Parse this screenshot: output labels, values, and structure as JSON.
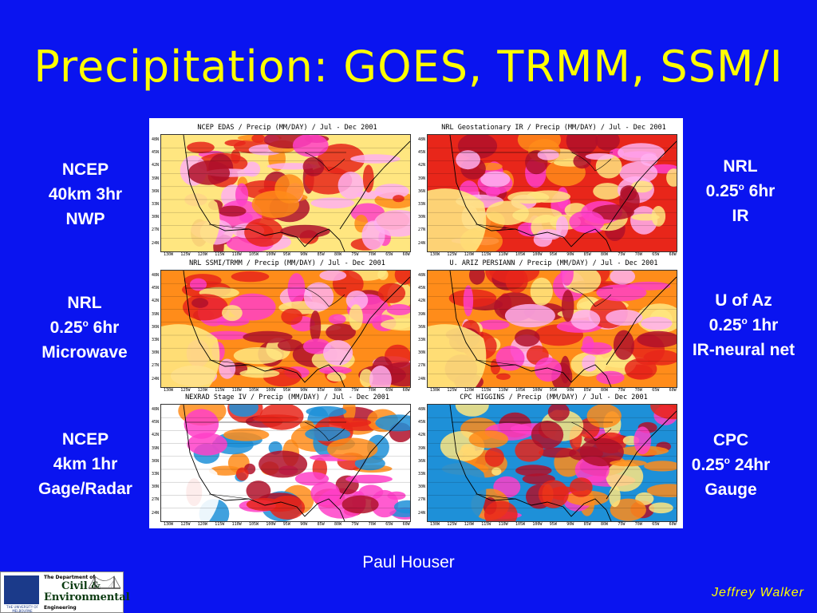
{
  "slide": {
    "title": "Precipitation: GOES, TRMM, SSM/I",
    "credit": "Paul Houser",
    "signature": "Jeffrey Walker"
  },
  "labels": {
    "left": [
      {
        "l1": "NCEP",
        "l2": "40km 3hr",
        "l3": "NWP"
      },
      {
        "l1": "NRL",
        "l2a": "0.25",
        "l2sup": "o",
        "l2b": " 6hr",
        "l3": "Microwave"
      },
      {
        "l1": "NCEP",
        "l2": "4km 1hr",
        "l3": "Gage/Radar"
      }
    ],
    "right": [
      {
        "l1": "NRL",
        "l2a": "0.25",
        "l2sup": "o",
        "l2b": " 6hr",
        "l3": "IR"
      },
      {
        "l1": "U of Az",
        "l2a": "0.25",
        "l2sup": "o",
        "l2b": " 1hr",
        "l3": "IR-neural net"
      },
      {
        "l1": "CPC",
        "l2a": "0.25",
        "l2sup": "o",
        "l2b": " 24hr",
        "l3": "Gauge"
      }
    ]
  },
  "maps": [
    {
      "title": "NCEP EDAS / Precip (MM/DAY) / Jul - Dec 2001"
    },
    {
      "title": "NRL Geostationary IR / Precip (MM/DAY) / Jul - Dec 2001"
    },
    {
      "title": "NRL SSMI/TRMM / Precip (MM/DAY) / Jul - Dec 2001"
    },
    {
      "title": "U. ARIZ PERSIANN / Precip (MM/DAY) / Jul - Dec 2001"
    },
    {
      "title": "NEXRAD Stage IV / Precip (MM/DAY) / Jul - Dec 2001"
    },
    {
      "title": "CPC HIGGINS / Precip (MM/DAY) / Jul - Dec 2001"
    }
  ],
  "lat_ticks": [
    "48N",
    "45N",
    "42N",
    "39N",
    "36N",
    "33N",
    "30N",
    "27N",
    "24N"
  ],
  "lon_ticks": [
    "130W",
    "125W",
    "120W",
    "115W",
    "110W",
    "105W",
    "100W",
    "95W",
    "90W",
    "85W",
    "80W",
    "75W",
    "70W",
    "65W",
    "60W"
  ],
  "logo": {
    "crest_text": "THE UNIVERSITY OF MELBOURNE",
    "dept": "The Department of",
    "civil": "Civil &",
    "env": "Environmental",
    "eng": "Engineering"
  },
  "colors": {
    "background": "#0a14f0",
    "title": "#ffff00",
    "label": "#ffffff",
    "precip_light": "#ffe680",
    "precip_orange": "#ff8c1a",
    "precip_red": "#e8261a",
    "precip_dark": "#b0102a",
    "precip_magenta": "#ff40c8",
    "precip_pink": "#ffb0f0",
    "no_data_blue": "#1e90d8"
  }
}
